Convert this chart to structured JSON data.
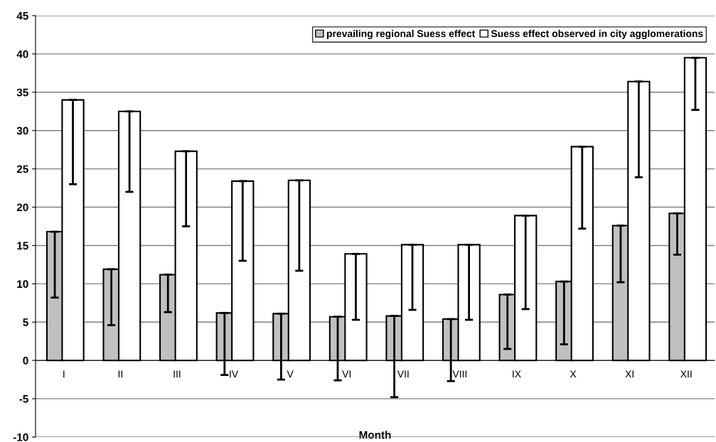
{
  "chart_data": {
    "type": "bar",
    "xlabel": "Month",
    "categories": [
      "I",
      "II",
      "III",
      "IV",
      "V",
      "VI",
      "VII",
      "VIII",
      "IX",
      "X",
      "XI",
      "XII"
    ],
    "series": [
      {
        "name": "prevailing regional Suess effect",
        "color": "#c0c0c0",
        "values": [
          16.8,
          11.9,
          11.2,
          6.2,
          6.1,
          5.7,
          5.8,
          5.4,
          8.6,
          10.3,
          17.6,
          19.2
        ],
        "errors": [
          [
            8.2,
            16.8
          ],
          [
            4.6,
            11.9
          ],
          [
            6.3,
            11.2
          ],
          [
            -1.9,
            6.2
          ],
          [
            -2.5,
            6.1
          ],
          [
            -2.6,
            5.7
          ],
          [
            -4.8,
            5.8
          ],
          [
            -2.7,
            5.4
          ],
          [
            1.5,
            8.6
          ],
          [
            2.1,
            10.3
          ],
          [
            10.2,
            17.6
          ],
          [
            13.8,
            19.2
          ]
        ]
      },
      {
        "name": "Suess effect observed in city agglomerations",
        "color": "#ffffff",
        "values": [
          34.0,
          32.5,
          27.3,
          23.4,
          23.5,
          13.9,
          15.1,
          15.1,
          18.9,
          27.9,
          36.4,
          39.5
        ],
        "errors": [
          [
            23.0,
            34.0
          ],
          [
            22.0,
            32.5
          ],
          [
            17.5,
            27.3
          ],
          [
            13.0,
            23.4
          ],
          [
            11.7,
            23.5
          ],
          [
            5.3,
            13.9
          ],
          [
            6.6,
            15.1
          ],
          [
            5.3,
            15.1
          ],
          [
            6.7,
            18.9
          ],
          [
            17.2,
            27.9
          ],
          [
            23.9,
            36.4
          ],
          [
            32.7,
            39.5
          ]
        ]
      }
    ],
    "ylim": [
      -10,
      45
    ],
    "yticks": [
      -10,
      -5,
      0,
      5,
      10,
      15,
      20,
      25,
      30,
      35,
      40,
      45
    ],
    "grid": "y",
    "legend": "top right"
  }
}
